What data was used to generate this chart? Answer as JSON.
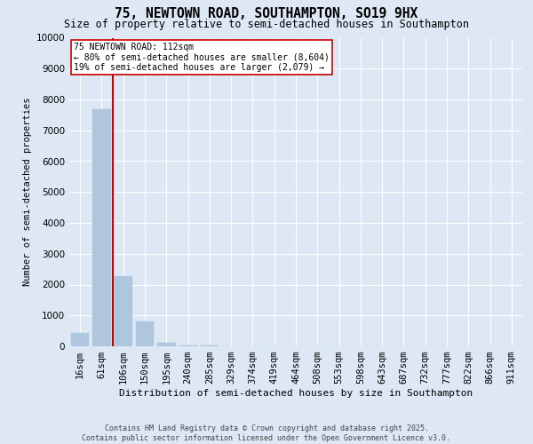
{
  "title_line1": "75, NEWTOWN ROAD, SOUTHAMPTON, SO19 9HX",
  "title_line2": "Size of property relative to semi-detached houses in Southampton",
  "xlabel": "Distribution of semi-detached houses by size in Southampton",
  "ylabel": "Number of semi-detached properties",
  "categories": [
    "16sqm",
    "61sqm",
    "106sqm",
    "150sqm",
    "195sqm",
    "240sqm",
    "285sqm",
    "329sqm",
    "374sqm",
    "419sqm",
    "464sqm",
    "508sqm",
    "553sqm",
    "598sqm",
    "643sqm",
    "687sqm",
    "732sqm",
    "777sqm",
    "822sqm",
    "866sqm",
    "911sqm"
  ],
  "values": [
    430,
    7680,
    2270,
    800,
    120,
    40,
    15,
    5,
    3,
    2,
    1,
    1,
    0,
    0,
    0,
    0,
    0,
    0,
    0,
    0,
    0
  ],
  "bar_color": "#aec6de",
  "vline_color": "#cc0000",
  "annotation_text": "75 NEWTOWN ROAD: 112sqm\n← 80% of semi-detached houses are smaller (8,604)\n19% of semi-detached houses are larger (2,079) →",
  "annotation_box_color": "#cc0000",
  "background_color": "#dde8f4",
  "grid_color": "#ffffff",
  "ylim": [
    0,
    10000
  ],
  "yticks": [
    0,
    1000,
    2000,
    3000,
    4000,
    5000,
    6000,
    7000,
    8000,
    9000,
    10000
  ],
  "footer_line1": "Contains HM Land Registry data © Crown copyright and database right 2025.",
  "footer_line2": "Contains public sector information licensed under the Open Government Licence v3.0."
}
